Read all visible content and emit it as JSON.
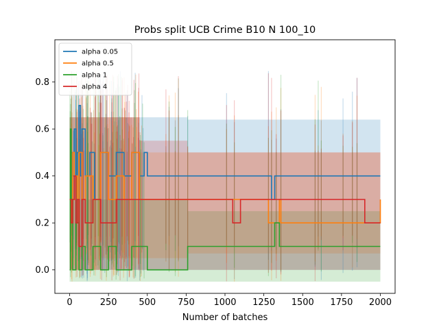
{
  "chart_data": {
    "type": "line",
    "title": "Probs split UCB Crime B10 N 100_10",
    "xlabel": "Number of batches",
    "ylabel": "",
    "xlim": [
      -95,
      2095
    ],
    "ylim": [
      -0.1,
      0.98
    ],
    "x_ticks": [
      0,
      250,
      500,
      750,
      1000,
      1250,
      1500,
      1750,
      2000
    ],
    "x_tick_labels": [
      "0",
      "250",
      "500",
      "750",
      "1000",
      "1250",
      "1500",
      "1750",
      "2000"
    ],
    "y_ticks": [
      0.0,
      0.2,
      0.4,
      0.6,
      0.8
    ],
    "y_tick_labels": [
      "0.0",
      "0.2",
      "0.4",
      "0.6",
      "0.8"
    ],
    "grid": false,
    "legend_position": "top-left",
    "series": [
      {
        "name": "alpha 0.05",
        "color": "#1f77b4",
        "line": [
          [
            0,
            0.3
          ],
          [
            10,
            0.5
          ],
          [
            20,
            0.4
          ],
          [
            30,
            0.6
          ],
          [
            40,
            0.3
          ],
          [
            50,
            0.5
          ],
          [
            60,
            0.7
          ],
          [
            70,
            0.4
          ],
          [
            80,
            0.6
          ],
          [
            100,
            0.4
          ],
          [
            130,
            0.5
          ],
          [
            160,
            0.3
          ],
          [
            200,
            0.5
          ],
          [
            250,
            0.4
          ],
          [
            300,
            0.5
          ],
          [
            350,
            0.4
          ],
          [
            400,
            0.5
          ],
          [
            450,
            0.4
          ],
          [
            480,
            0.5
          ],
          [
            500,
            0.4
          ],
          [
            760,
            0.4
          ],
          [
            1280,
            0.4
          ],
          [
            1300,
            0.3
          ],
          [
            1320,
            0.4
          ],
          [
            1350,
            0.4
          ],
          [
            1600,
            0.4
          ],
          [
            2000,
            0.4
          ]
        ],
        "band": [
          [
            0,
            0.0,
            0.65
          ],
          [
            500,
            0.0,
            0.65
          ],
          [
            760,
            0.0,
            0.64
          ],
          [
            2000,
            0.0,
            0.64
          ]
        ]
      },
      {
        "name": "alpha 0.5",
        "color": "#ff7f0e",
        "line": [
          [
            0,
            0.3
          ],
          [
            10,
            0.2
          ],
          [
            20,
            0.5
          ],
          [
            30,
            0.3
          ],
          [
            40,
            0.4
          ],
          [
            50,
            0.2
          ],
          [
            60,
            0.5
          ],
          [
            80,
            0.3
          ],
          [
            100,
            0.4
          ],
          [
            150,
            0.3
          ],
          [
            200,
            0.5
          ],
          [
            250,
            0.3
          ],
          [
            300,
            0.4
          ],
          [
            350,
            0.3
          ],
          [
            400,
            0.5
          ],
          [
            450,
            0.3
          ],
          [
            500,
            0.3
          ],
          [
            620,
            0.3
          ],
          [
            760,
            0.3
          ],
          [
            1000,
            0.3
          ],
          [
            1250,
            0.3
          ],
          [
            1280,
            0.2
          ],
          [
            1350,
            0.3
          ],
          [
            1360,
            0.2
          ],
          [
            1600,
            0.2
          ],
          [
            1760,
            0.2
          ],
          [
            1850,
            0.2
          ],
          [
            2000,
            0.3
          ]
        ],
        "band": [
          [
            0,
            0.0,
            0.65
          ],
          [
            200,
            0.05,
            0.65
          ],
          [
            450,
            0.05,
            0.5
          ],
          [
            760,
            0.07,
            0.5
          ],
          [
            2000,
            0.07,
            0.53
          ]
        ]
      },
      {
        "name": "alpha 1",
        "color": "#2ca02c",
        "line": [
          [
            0,
            0.0
          ],
          [
            5,
            0.6
          ],
          [
            10,
            0.3
          ],
          [
            20,
            0.0
          ],
          [
            40,
            0.2
          ],
          [
            60,
            0.0
          ],
          [
            80,
            0.1
          ],
          [
            100,
            0.0
          ],
          [
            150,
            0.1
          ],
          [
            200,
            0.0
          ],
          [
            250,
            0.1
          ],
          [
            300,
            0.0
          ],
          [
            400,
            0.1
          ],
          [
            500,
            0.0
          ],
          [
            760,
            0.0
          ],
          [
            760,
            0.1
          ],
          [
            1320,
            0.1
          ],
          [
            1320,
            0.2
          ],
          [
            1350,
            0.2
          ],
          [
            1350,
            0.1
          ],
          [
            2000,
            0.1
          ]
        ],
        "band": [
          [
            0,
            -0.05,
            0.3
          ],
          [
            760,
            -0.05,
            0.25
          ],
          [
            1320,
            -0.05,
            0.25
          ],
          [
            2000,
            -0.05,
            0.25
          ]
        ]
      },
      {
        "name": "alpha 4",
        "color": "#d62728",
        "line": [
          [
            0,
            0.3
          ],
          [
            10,
            0.2
          ],
          [
            20,
            0.3
          ],
          [
            30,
            0.4
          ],
          [
            40,
            0.2
          ],
          [
            50,
            0.3
          ],
          [
            60,
            0.1
          ],
          [
            80,
            0.3
          ],
          [
            100,
            0.2
          ],
          [
            150,
            0.3
          ],
          [
            200,
            0.2
          ],
          [
            300,
            0.3
          ],
          [
            450,
            0.3
          ],
          [
            500,
            0.3
          ],
          [
            1000,
            0.3
          ],
          [
            1050,
            0.2
          ],
          [
            1100,
            0.3
          ],
          [
            1850,
            0.3
          ],
          [
            1900,
            0.2
          ],
          [
            2000,
            0.2
          ]
        ],
        "band": [
          [
            0,
            0.0,
            0.65
          ],
          [
            450,
            0.0,
            0.55
          ],
          [
            760,
            0.0,
            0.5
          ],
          [
            2000,
            0.0,
            0.5
          ]
        ]
      }
    ]
  }
}
